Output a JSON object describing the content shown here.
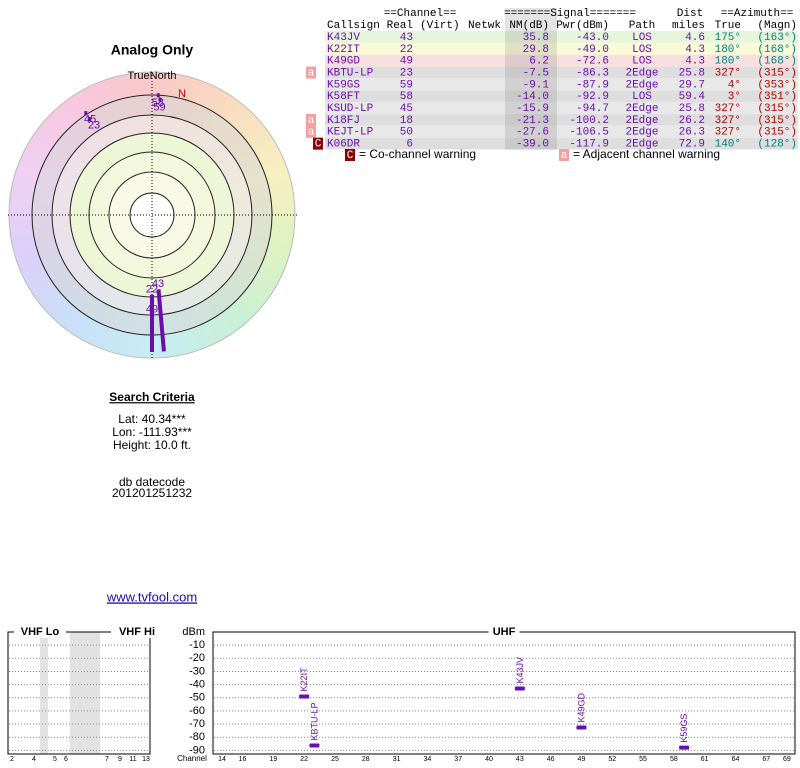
{
  "header": {
    "title": "Analog Only",
    "north_label": "TrueNorth",
    "north_marker": "N"
  },
  "table": {
    "group_headers": [
      "==Channel==",
      "=======Signal=======",
      "Dist",
      "==Azimuth=="
    ],
    "columns": [
      "Callsign",
      "Real",
      "(Virt)",
      "Netwk",
      "NM(dB)",
      "Pwr(dBm)",
      "Path",
      "miles",
      "True",
      "(Magn)"
    ],
    "rows": [
      {
        "callsign": "K43JV",
        "real": 43,
        "nm": 35.8,
        "pwr": {
          "value": -43,
          "label": "-43.0"
        },
        "path": "LOS",
        "miles": 4.6,
        "az_true": {
          "value": 175,
          "label": "175°"
        },
        "az_magn": "(163°)",
        "az_color": "#008080"
      },
      {
        "callsign": "K22IT",
        "real": 22,
        "nm": 29.8,
        "pwr": {
          "value": -49,
          "label": "-49.0"
        },
        "path": "LOS",
        "miles": 4.3,
        "az_true": {
          "value": 180,
          "label": "180°"
        },
        "az_magn": "(168°)",
        "az_color": "#008080"
      },
      {
        "callsign": "K49GD",
        "real": 49,
        "nm": 6.2,
        "pwr": -72.6,
        "path": "LOS",
        "miles": 4.3,
        "az_true": {
          "value": 180,
          "label": "180°"
        },
        "az_magn": "(168°)",
        "az_color": "#008080"
      },
      {
        "flag": "a",
        "callsign": "KBTU-LP",
        "real": 23,
        "nm": -7.5,
        "pwr": -86.3,
        "path": "2Edge",
        "miles": 25.8,
        "az_true": {
          "value": 327,
          "label": "327°"
        },
        "az_magn": "(315°)",
        "az_color": "#b00000"
      },
      {
        "callsign": "K59GS",
        "real": 59,
        "nm": -9.1,
        "pwr": -87.9,
        "path": "2Edge",
        "miles": 29.7,
        "az_true": {
          "value": 4,
          "label": "4°"
        },
        "az_magn": "(353°)",
        "az_color": "#b00000"
      },
      {
        "callsign": "K58FT",
        "real": 58,
        "nm": {
          "value": -14,
          "label": "-14.0"
        },
        "pwr": -92.9,
        "path": "LOS",
        "miles": 59.4,
        "az_true": {
          "value": 3,
          "label": "3°"
        },
        "az_magn": "(351°)",
        "az_color": "#b00000"
      },
      {
        "callsign": "KSUD-LP",
        "real": 45,
        "nm": -15.9,
        "pwr": -94.7,
        "path": "2Edge",
        "miles": 25.8,
        "az_true": {
          "value": 327,
          "label": "327°"
        },
        "az_magn": "(315°)",
        "az_color": "#b00000"
      },
      {
        "flag": "a",
        "callsign": "K18FJ",
        "real": 18,
        "nm": -21.3,
        "pwr": -100.2,
        "path": "2Edge",
        "miles": 26.2,
        "az_true": {
          "value": 327,
          "label": "327°"
        },
        "az_magn": "(315°)",
        "az_color": "#b00000"
      },
      {
        "flag": "a",
        "callsign": "KEJT-LP",
        "real": 50,
        "nm": -27.6,
        "pwr": -106.5,
        "path": "2Edge",
        "miles": 26.3,
        "az_true": {
          "value": 327,
          "label": "327°"
        },
        "az_magn": "(315°)",
        "az_color": "#b00000"
      },
      {
        "flag": "C",
        "callsign": "K06DR",
        "real": 6,
        "nm": {
          "value": -39,
          "label": "-39.0"
        },
        "pwr": -117.9,
        "path": "2Edge",
        "miles": 72.9,
        "az_true": {
          "value": 140,
          "label": "140°"
        },
        "az_magn": "(128°)",
        "az_color": "#008080"
      }
    ]
  },
  "legend": {
    "co_flag": "C",
    "co_text": "= Co-channel warning",
    "adj_flag": "a",
    "adj_text": "= Adjacent channel warning"
  },
  "search": {
    "title": "Search Criteria",
    "lat": "Lat: 40.34***",
    "lon": "Lon: -111.93***",
    "height": "Height: 10.0 ft.",
    "datecode_label": "db datecode",
    "datecode": "201201251232"
  },
  "link": "www.tvfool.com",
  "chart_data": {
    "type": "bar",
    "y_label": "dBm",
    "x_label": "Channel",
    "color": "#6a0dad",
    "grid": true,
    "ylim": [
      -92,
      0
    ],
    "yticks": [
      -10,
      -20,
      -30,
      -40,
      -50,
      -60,
      -70,
      -80,
      -90
    ],
    "panels": [
      {
        "title": "VHF Lo",
        "xticks": [
          2,
          4,
          5,
          6
        ]
      },
      {
        "title": "VHF Hi",
        "xticks": [
          7,
          9,
          11,
          13
        ]
      },
      {
        "title": "UHF",
        "xticks": [
          14,
          16,
          19,
          22,
          25,
          28,
          31,
          34,
          37,
          40,
          43,
          46,
          49,
          52,
          55,
          58,
          61,
          64,
          67,
          69
        ]
      }
    ]
  }
}
